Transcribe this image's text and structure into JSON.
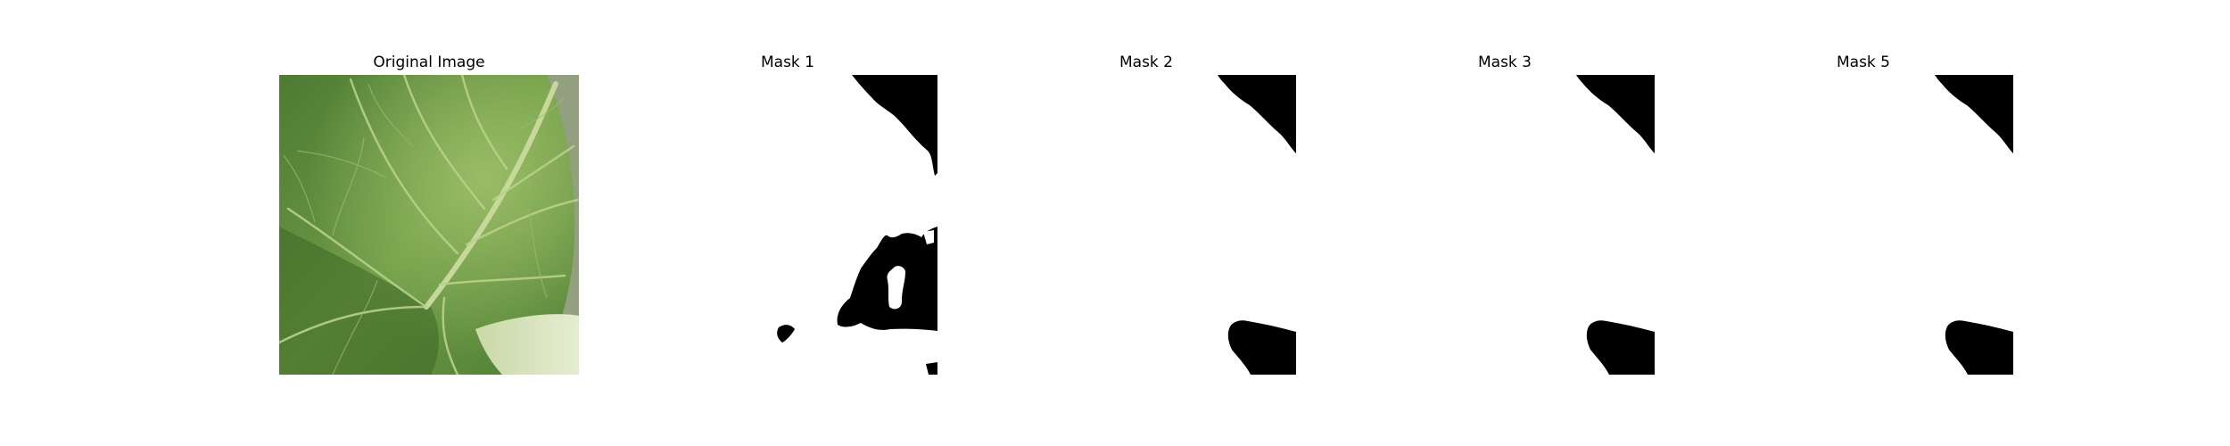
{
  "figure": {
    "panels": [
      {
        "title": "Original Image",
        "kind": "photo",
        "subject": "leaf-closeup"
      },
      {
        "title": "Mask 1",
        "kind": "binary-mask"
      },
      {
        "title": "Mask 2",
        "kind": "binary-mask"
      },
      {
        "title": "Mask 3",
        "kind": "binary-mask"
      },
      {
        "title": "Mask 5",
        "kind": "binary-mask"
      }
    ],
    "colors": {
      "background": "#ffffff",
      "mask_foreground": "#000000",
      "mask_background": "#ffffff",
      "leaf_dark": "#3f6a2a",
      "leaf_mid": "#6f9a45",
      "leaf_light": "#a7c57a",
      "backdrop": "#9aa78a"
    }
  }
}
